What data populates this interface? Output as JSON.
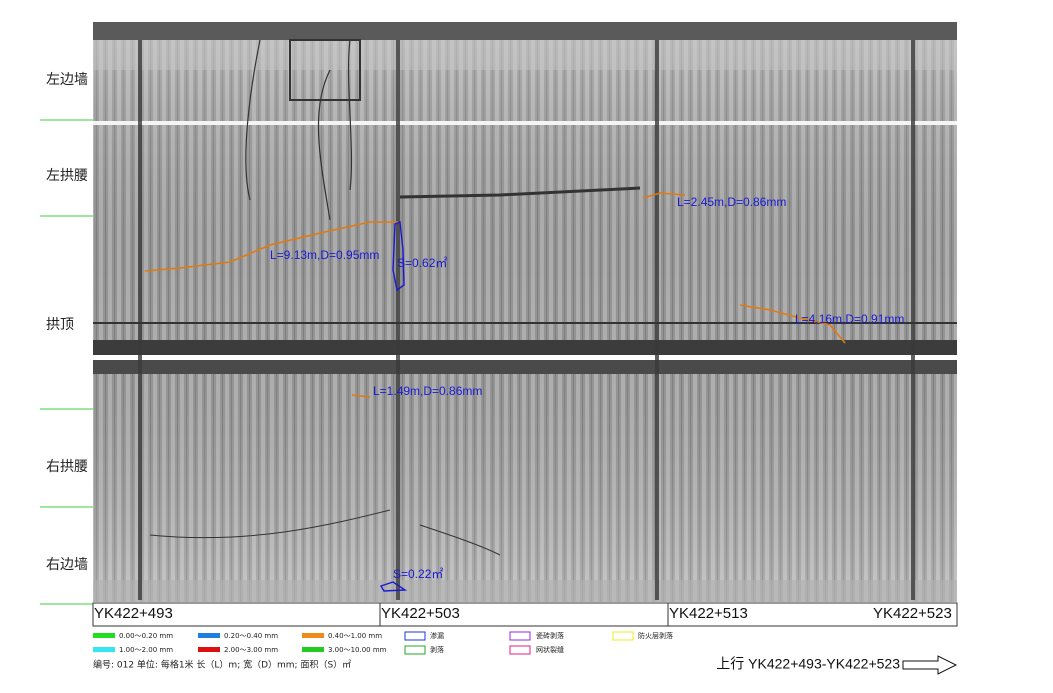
{
  "zones": [
    "左边墙",
    "左拱腰",
    "拱顶",
    "右拱腰",
    "右边墙"
  ],
  "annotations": [
    "L=9.13m,D=0.95mm",
    "S=0.62㎡",
    "L=2.45m,D=0.86mm",
    "L=4.16m,D=0.91mm",
    "L=1.49m,D=0.86mm",
    "S=0.22㎡"
  ],
  "stations": [
    "YK422+493",
    "YK422+503",
    "YK422+513",
    "YK422+523"
  ],
  "legend": {
    "row1": [
      "0.00～0.20 mm",
      "0.20～0.40 mm",
      "0.40～1.00 mm",
      "渗漏",
      "瓷砖剥落",
      "防火层剥落"
    ],
    "row2": [
      "1.00～2.00 mm",
      "2.00～3.00 mm",
      "3.00～10.00 mm",
      "剥落",
      "网状裂缝"
    ]
  },
  "footer": "编号: 012   单位: 每格1米   长（L）m;   宽（D）mm;   面积（S）㎡",
  "direction": "上行 YK422+493-YK422+523"
}
